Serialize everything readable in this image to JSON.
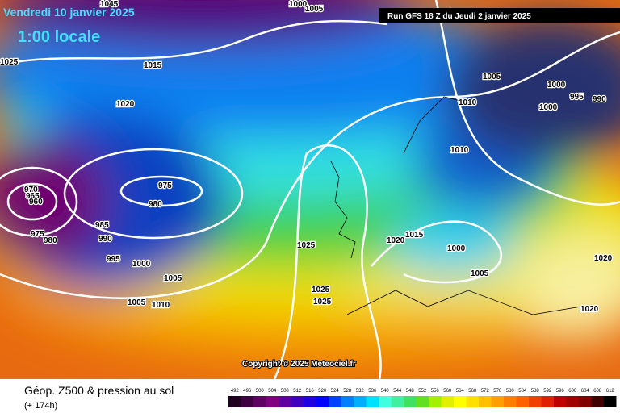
{
  "header": {
    "date": "Vendredi 10 janvier 2025",
    "time": "1:00 locale",
    "run": "Run GFS 18 Z du Jeudi 2 janvier 2025"
  },
  "copyright": "Copyright © 2025 Meteociel.fr",
  "footer": {
    "title": "Géop. Z500 & pression au sol",
    "lead": "(+ 174h)"
  },
  "isobar_labels": [
    1045,
    1000,
    1005,
    1025,
    1015,
    1020,
    1005,
    1000,
    995,
    990,
    1000,
    1010,
    1010,
    970,
    965,
    960,
    975,
    980,
    985,
    975,
    980,
    990,
    995,
    1000,
    1005,
    1005,
    1010,
    1025,
    1020,
    1015,
    1000,
    1005,
    1025,
    1025,
    1020,
    1020
  ],
  "legend": [
    492,
    496,
    500,
    504,
    508,
    512,
    516,
    520,
    524,
    528,
    532,
    536,
    540,
    544,
    548,
    552,
    556,
    560,
    564,
    568,
    572,
    576,
    580,
    584,
    588,
    592,
    596,
    600,
    604,
    608,
    612
  ]
}
